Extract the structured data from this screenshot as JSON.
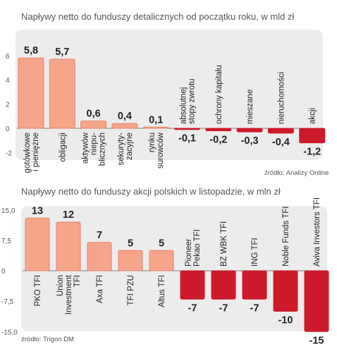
{
  "chart_data": [
    {
      "type": "bar",
      "title": "Napływy netto do funduszy detalicznych od początku roku, w mld zł",
      "source": "źródło: Analizy Online",
      "categories": [
        "gotówkowe i pieniężne",
        "obligacji",
        "aktywów niepublicznych",
        "sekurytyzacyjne",
        "rynku surowców",
        "absolutnej stopy zwrotu",
        "ochrony kapitału",
        "mieszane",
        "nieruchomości",
        "akcji"
      ],
      "category_lines": [
        [
          "gotówkowe",
          "i pieniężne"
        ],
        [
          "obligacji"
        ],
        [
          "aktywów",
          "niepu-",
          "blicznych"
        ],
        [
          "sekuryty-",
          "zacyjne"
        ],
        [
          "rynku",
          "surowców"
        ],
        [
          "absolutnej",
          "stopy zwrotu"
        ],
        [
          "ochrony kapitału"
        ],
        [
          "mieszane"
        ],
        [
          "nieruchomości"
        ],
        [
          "akcji"
        ]
      ],
      "values": [
        5.8,
        5.7,
        0.6,
        0.4,
        0.1,
        -0.1,
        -0.2,
        -0.3,
        -0.4,
        -1.2
      ],
      "value_labels": [
        "5,8",
        "5,7",
        "0,6",
        "0,4",
        "0,1",
        "-0,1",
        "-0,2",
        "-0,3",
        "-0,4",
        "-1,2"
      ],
      "yticks": [
        "6",
        "4",
        "2",
        "0",
        "-2"
      ],
      "ylim": [
        -2,
        6
      ],
      "grid": false,
      "colors": {
        "positive": "#f4a58a",
        "positive_edge": "#e5856a",
        "negative": "#cc1a2a",
        "background": "#ececec"
      }
    },
    {
      "type": "bar",
      "title": "Napływy netto do funduszy akcji polskich w listopadzie, w mln zł",
      "source": "źródło: Trigon DM",
      "categories": [
        "PKO TFI",
        "Union Investment TFI",
        "Axa TFI",
        "TFI PZU",
        "Altus TFI",
        "Pioneer Pekao TFI",
        "BZ WBK TFI",
        "ING TFI",
        "Noble Funds TFI",
        "Aviva Investors TFI"
      ],
      "category_lines": [
        [
          "PKO TFI"
        ],
        [
          "Union",
          "Investment",
          "TFI"
        ],
        [
          "Axa TFI"
        ],
        [
          "TFI PZU"
        ],
        [
          "Altus TFI"
        ],
        [
          "Pioneer",
          "Pekao TFI"
        ],
        [
          "BZ WBK TFI"
        ],
        [
          "ING TFI"
        ],
        [
          "Noble Funds TFI"
        ],
        [
          "Aviva Investors TFI"
        ]
      ],
      "values": [
        13,
        12,
        7,
        5,
        5,
        -7,
        -7,
        -7,
        -10,
        -15
      ],
      "value_labels": [
        "13",
        "12",
        "7",
        "5",
        "5",
        "-7",
        "-7",
        "-7",
        "-10",
        "-15"
      ],
      "yticks": [
        "15,0",
        "7,5",
        "0",
        "-7,5",
        "-15,0"
      ],
      "ylim": [
        -15,
        15
      ],
      "grid": false,
      "colors": {
        "positive": "#f4a58a",
        "positive_edge": "#e5856a",
        "negative": "#cc1a2a",
        "background": "#ececec"
      }
    }
  ]
}
